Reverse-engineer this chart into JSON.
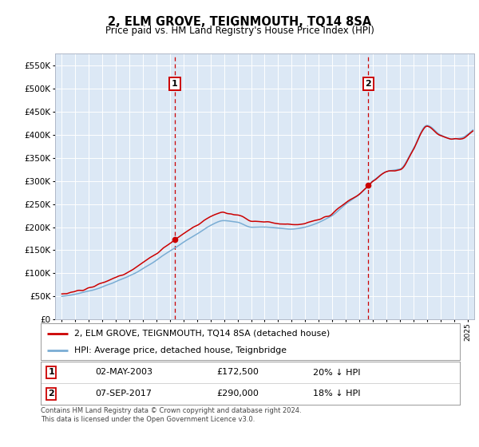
{
  "title": "2, ELM GROVE, TEIGNMOUTH, TQ14 8SA",
  "subtitle": "Price paid vs. HM Land Registry's House Price Index (HPI)",
  "legend_line1": "2, ELM GROVE, TEIGNMOUTH, TQ14 8SA (detached house)",
  "legend_line2": "HPI: Average price, detached house, Teignbridge",
  "sale1_date": "02-MAY-2003",
  "sale1_price": "£172,500",
  "sale1_hpi": "20% ↓ HPI",
  "sale1_year": 2003.35,
  "sale1_value": 172500,
  "sale2_date": "07-SEP-2017",
  "sale2_price": "£290,000",
  "sale2_hpi": "18% ↓ HPI",
  "sale2_year": 2017.67,
  "sale2_value": 290000,
  "footnote": "Contains HM Land Registry data © Crown copyright and database right 2024.\nThis data is licensed under the Open Government Licence v3.0.",
  "red_color": "#cc0000",
  "blue_color": "#7aadd4",
  "bg_color": "#dce8f5",
  "ylim_min": 0,
  "ylim_max": 575000,
  "xmin": 1994.5,
  "xmax": 2025.5
}
